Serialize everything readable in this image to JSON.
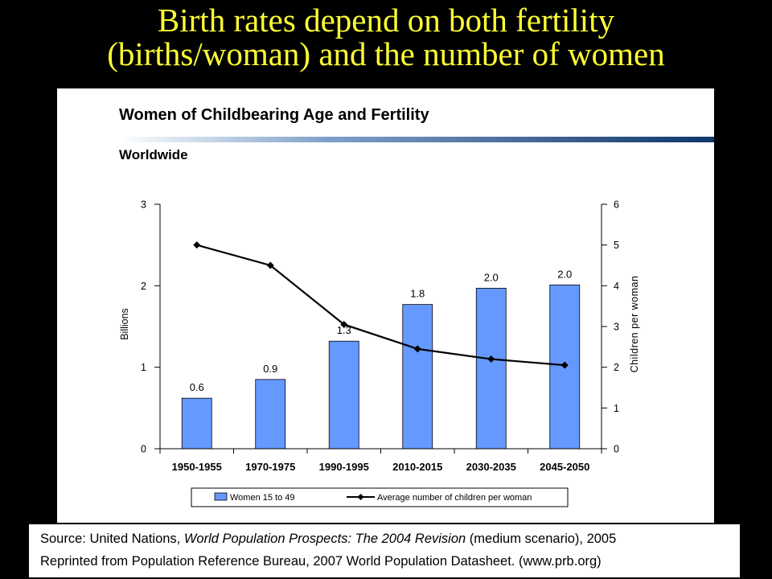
{
  "slide": {
    "title_line1": "Birth rates depend on both fertility",
    "title_line2": "(births/woman) and the number of women",
    "title_color": "#ffff33",
    "background": "#000000"
  },
  "source": {
    "line1_prefix": "Source: United Nations, ",
    "line1_italic": "World Population Prospects: The 2004 Revision",
    "line1_suffix": " (medium scenario), 2005",
    "line2": "Reprinted from Population Reference Bureau, 2007 World Population Datasheet.   (www.prb.org)"
  },
  "chart_data": {
    "type": "bar",
    "title": "Women of Childbearing Age and Fertility",
    "subtitle": "Worldwide",
    "categories": [
      "1950-1955",
      "1970-1975",
      "1990-1995",
      "2010-2015",
      "2030-2035",
      "2045-2050"
    ],
    "ylabel": "Billions",
    "ylim": [
      0,
      3
    ],
    "yticks": [
      0,
      1,
      2,
      3
    ],
    "y2label": "Children per woman",
    "y2lim": [
      0,
      6
    ],
    "y2ticks": [
      0,
      1,
      2,
      3,
      4,
      5,
      6
    ],
    "series": [
      {
        "name": "Women 15 to 49",
        "type": "bar",
        "axis": "left",
        "color": "#6699ff",
        "values": [
          0.62,
          0.85,
          1.32,
          1.77,
          1.97,
          2.01
        ],
        "labels": [
          "0.6",
          "0.9",
          "1.3",
          "1.8",
          "2.0",
          "2.0"
        ]
      },
      {
        "name": "Average number of children per woman",
        "type": "line",
        "axis": "right",
        "color": "#000000",
        "marker": "diamond",
        "values": [
          5.0,
          4.5,
          3.05,
          2.45,
          2.2,
          2.05
        ]
      }
    ],
    "legend_position": "bottom",
    "grid": false
  }
}
